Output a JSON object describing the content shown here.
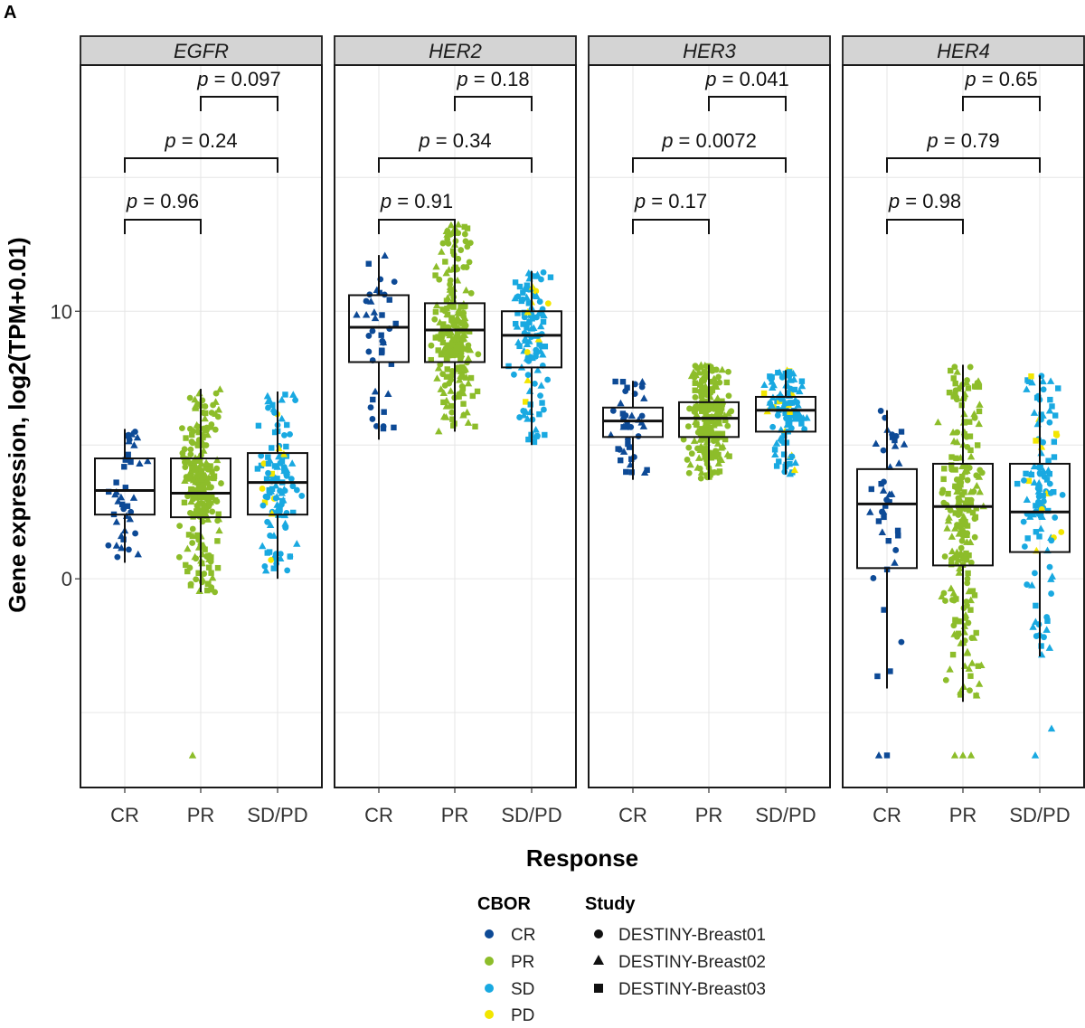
{
  "figure": {
    "panel_label": "A",
    "xlabel": "Response",
    "ylabel": "Gene expression, log2(TPM+0.01)"
  },
  "legend": {
    "cbor_title": "CBOR",
    "cbor_items": [
      {
        "label": "CR",
        "color": "#0d4a96"
      },
      {
        "label": "PR",
        "color": "#8dbd2a"
      },
      {
        "label": "SD",
        "color": "#19a9e1"
      },
      {
        "label": "PD",
        "color": "#f2e600"
      }
    ],
    "study_title": "Study",
    "study_items": [
      {
        "label": "DESTINY-Breast01",
        "shape": "circle"
      },
      {
        "label": "DESTINY-Breast02",
        "shape": "triangle"
      },
      {
        "label": "DESTINY-Breast03",
        "shape": "square"
      }
    ]
  },
  "chart_data": {
    "type": "box",
    "categories": [
      "CR",
      "PR",
      "SD/PD"
    ],
    "ylim": [
      -7.8,
      19.2
    ],
    "yticks": [
      0,
      10
    ],
    "grid": true,
    "panels": [
      {
        "gene": "EGFR",
        "boxes": [
          {
            "category": "CR",
            "whisker_low": 0.6,
            "q1": 2.4,
            "median": 3.3,
            "q3": 4.5,
            "whisker_high": 5.6
          },
          {
            "category": "PR",
            "whisker_low": -0.5,
            "q1": 2.3,
            "median": 3.2,
            "q3": 4.5,
            "whisker_high": 7.1
          },
          {
            "category": "SD/PD",
            "whisker_low": 0.0,
            "q1": 2.4,
            "median": 3.6,
            "q3": 4.7,
            "whisker_high": 7.0
          }
        ],
        "comparisons": [
          {
            "pair": [
              "CR",
              "PR"
            ],
            "p": "0.96"
          },
          {
            "pair": [
              "CR",
              "SD/PD"
            ],
            "p": "0.24"
          },
          {
            "pair": [
              "PR",
              "SD/PD"
            ],
            "p": "0.097"
          }
        ],
        "outliers": [
          {
            "category": "PR",
            "value": -6.6,
            "cbor": "PR",
            "study": "triangle"
          }
        ]
      },
      {
        "gene": "HER2",
        "boxes": [
          {
            "category": "CR",
            "whisker_low": 5.2,
            "q1": 8.1,
            "median": 9.4,
            "q3": 10.6,
            "whisker_high": 12.1
          },
          {
            "category": "PR",
            "whisker_low": 5.5,
            "q1": 8.1,
            "median": 9.3,
            "q3": 10.3,
            "whisker_high": 13.3
          },
          {
            "category": "SD/PD",
            "whisker_low": 5.0,
            "q1": 7.9,
            "median": 9.1,
            "q3": 10.0,
            "whisker_high": 11.5
          }
        ],
        "comparisons": [
          {
            "pair": [
              "CR",
              "PR"
            ],
            "p": "0.91"
          },
          {
            "pair": [
              "CR",
              "SD/PD"
            ],
            "p": "0.34"
          },
          {
            "pair": [
              "PR",
              "SD/PD"
            ],
            "p": "0.18"
          }
        ],
        "outliers": []
      },
      {
        "gene": "HER3",
        "boxes": [
          {
            "category": "CR",
            "whisker_low": 3.7,
            "q1": 5.3,
            "median": 5.9,
            "q3": 6.4,
            "whisker_high": 7.4
          },
          {
            "category": "PR",
            "whisker_low": 3.7,
            "q1": 5.3,
            "median": 6.0,
            "q3": 6.6,
            "whisker_high": 8.0
          },
          {
            "category": "SD/PD",
            "whisker_low": 3.9,
            "q1": 5.5,
            "median": 6.3,
            "q3": 6.8,
            "whisker_high": 7.8
          }
        ],
        "comparisons": [
          {
            "pair": [
              "CR",
              "PR"
            ],
            "p": "0.17"
          },
          {
            "pair": [
              "CR",
              "SD/PD"
            ],
            "p": "0.0072"
          },
          {
            "pair": [
              "PR",
              "SD/PD"
            ],
            "p": "0.041"
          }
        ],
        "outliers": []
      },
      {
        "gene": "HER4",
        "boxes": [
          {
            "category": "CR",
            "whisker_low": -4.1,
            "q1": 0.4,
            "median": 2.8,
            "q3": 4.1,
            "whisker_high": 6.3
          },
          {
            "category": "PR",
            "whisker_low": -4.6,
            "q1": 0.5,
            "median": 2.7,
            "q3": 4.3,
            "whisker_high": 8.0
          },
          {
            "category": "SD/PD",
            "whisker_low": -2.9,
            "q1": 1.0,
            "median": 2.5,
            "q3": 4.3,
            "whisker_high": 7.6
          }
        ],
        "comparisons": [
          {
            "pair": [
              "CR",
              "PR"
            ],
            "p": "0.98"
          },
          {
            "pair": [
              "CR",
              "SD/PD"
            ],
            "p": "0.79"
          },
          {
            "pair": [
              "PR",
              "SD/PD"
            ],
            "p": "0.65"
          }
        ],
        "outliers": [
          {
            "category": "CR",
            "value": -6.6,
            "cbor": "CR",
            "study": "triangle"
          },
          {
            "category": "CR",
            "value": -6.6,
            "cbor": "CR",
            "study": "square"
          },
          {
            "category": "PR",
            "value": -6.6,
            "cbor": "PR",
            "study": "triangle"
          },
          {
            "category": "PR",
            "value": -6.6,
            "cbor": "PR",
            "study": "triangle"
          },
          {
            "category": "PR",
            "value": -6.6,
            "cbor": "PR",
            "study": "triangle"
          },
          {
            "category": "SD/PD",
            "value": -5.6,
            "cbor": "SD",
            "study": "triangle"
          },
          {
            "category": "SD/PD",
            "value": -6.6,
            "cbor": "SD",
            "study": "triangle"
          }
        ]
      }
    ]
  }
}
